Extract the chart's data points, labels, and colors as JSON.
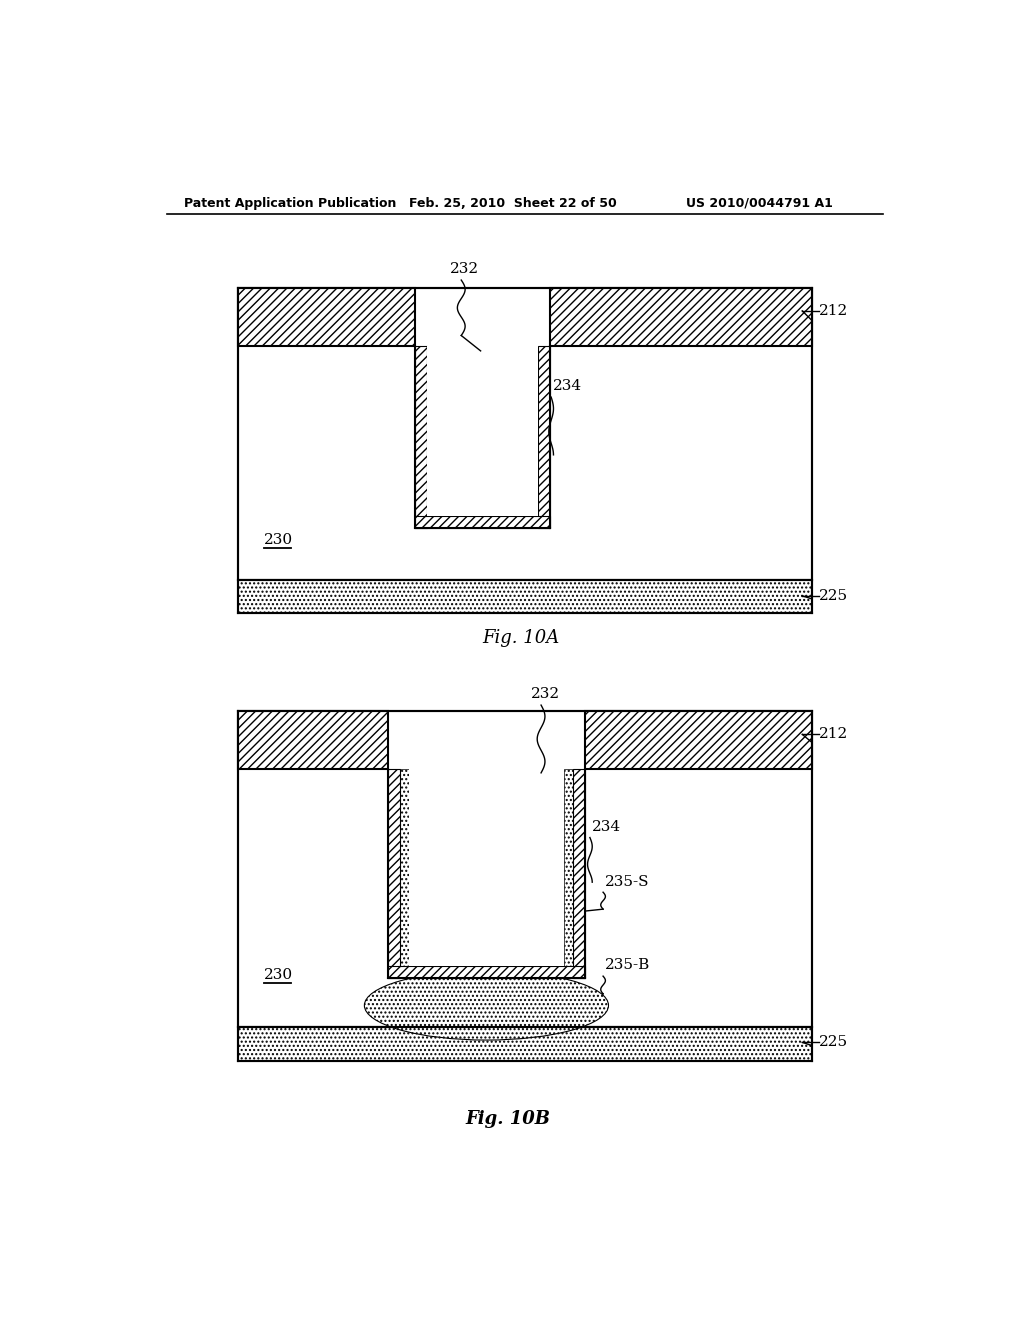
{
  "header_left": "Patent Application Publication",
  "header_mid": "Feb. 25, 2010  Sheet 22 of 50",
  "header_right": "US 2010/0044791 A1",
  "fig_a_label": "Fig. 10A",
  "fig_b_label": "Fig. 10B",
  "label_212": "212",
  "label_225": "225",
  "label_230a": "230",
  "label_230b": "230",
  "label_232a": "232",
  "label_232b": "232",
  "label_234a": "234",
  "label_234b": "234",
  "label_235s": "235-S",
  "label_235b": "235-B",
  "bg_color": "#ffffff"
}
